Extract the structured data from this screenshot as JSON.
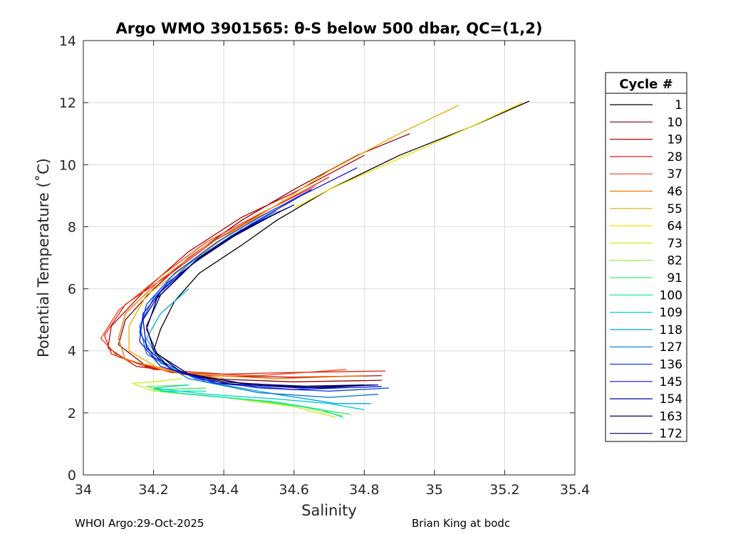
{
  "chart_data": {
    "type": "line",
    "title": "Argo WMO 3901565: θ-S below 500 dbar,  QC=(1,2)",
    "xlabel": "Salinity",
    "ylabel": "Potential Temperature (˚C)",
    "xlim": [
      34,
      35.4
    ],
    "ylim": [
      0,
      14
    ],
    "xticks": [
      "34",
      "34.2",
      "34.4",
      "34.6",
      "34.8",
      "35",
      "35.2",
      "35.4"
    ],
    "yticks": [
      "0",
      "2",
      "4",
      "6",
      "8",
      "10",
      "12",
      "14"
    ],
    "grid": true,
    "legend": {
      "title": "Cycle #",
      "placement": "right",
      "entries": [
        {
          "label": "1",
          "color": "#000000"
        },
        {
          "label": "10",
          "color": "#8b0000"
        },
        {
          "label": "19",
          "color": "#c00000"
        },
        {
          "label": "28",
          "color": "#e02010"
        },
        {
          "label": "37",
          "color": "#ee4010"
        },
        {
          "label": "46",
          "color": "#ee7700"
        },
        {
          "label": "55",
          "color": "#f0a800"
        },
        {
          "label": "64",
          "color": "#f0e000"
        },
        {
          "label": "73",
          "color": "#c8f020"
        },
        {
          "label": "82",
          "color": "#80f040"
        },
        {
          "label": "91",
          "color": "#30f060"
        },
        {
          "label": "100",
          "color": "#00e8a0"
        },
        {
          "label": "109",
          "color": "#00d0d0"
        },
        {
          "label": "118",
          "color": "#00a8e0"
        },
        {
          "label": "127",
          "color": "#0070d0"
        },
        {
          "label": "136",
          "color": "#0040e0"
        },
        {
          "label": "145",
          "color": "#1010f0"
        },
        {
          "label": "154",
          "color": "#0000b0"
        },
        {
          "label": "163",
          "color": "#000070"
        },
        {
          "label": "172",
          "color": "#000060"
        }
      ]
    },
    "series": [
      {
        "name": "1",
        "color": "#000000",
        "points": [
          [
            35.27,
            12.05
          ],
          [
            35.1,
            11.2
          ],
          [
            34.9,
            10.3
          ],
          [
            34.7,
            9.2
          ],
          [
            34.55,
            8.2
          ],
          [
            34.45,
            7.4
          ],
          [
            34.33,
            6.5
          ],
          [
            34.26,
            5.6
          ],
          [
            34.22,
            4.7
          ],
          [
            34.2,
            4.0
          ],
          [
            34.25,
            3.4
          ],
          [
            34.4,
            3.0
          ],
          [
            34.6,
            2.85
          ],
          [
            34.8,
            2.9
          ]
        ]
      },
      {
        "name": "10",
        "color": "#8b0000",
        "points": [
          [
            34.93,
            11.0
          ],
          [
            34.78,
            10.3
          ],
          [
            34.6,
            9.2
          ],
          [
            34.45,
            8.2
          ],
          [
            34.3,
            7.0
          ],
          [
            34.2,
            6.0
          ],
          [
            34.12,
            5.0
          ],
          [
            34.1,
            4.2
          ],
          [
            34.18,
            3.5
          ],
          [
            34.35,
            3.1
          ],
          [
            34.6,
            3.0
          ],
          [
            34.85,
            3.05
          ]
        ]
      },
      {
        "name": "19",
        "color": "#c00000",
        "points": [
          [
            34.8,
            10.3
          ],
          [
            34.6,
            9.1
          ],
          [
            34.45,
            8.3
          ],
          [
            34.3,
            7.2
          ],
          [
            34.18,
            6.0
          ],
          [
            34.08,
            4.8
          ],
          [
            34.07,
            4.1
          ],
          [
            34.15,
            3.5
          ],
          [
            34.35,
            3.2
          ],
          [
            34.6,
            3.15
          ],
          [
            34.85,
            3.2
          ]
        ]
      },
      {
        "name": "28",
        "color": "#e02010",
        "points": [
          [
            34.7,
            9.6
          ],
          [
            34.52,
            8.5
          ],
          [
            34.38,
            7.6
          ],
          [
            34.25,
            6.5
          ],
          [
            34.12,
            5.5
          ],
          [
            34.06,
            4.5
          ],
          [
            34.08,
            3.9
          ],
          [
            34.2,
            3.4
          ],
          [
            34.4,
            3.25
          ],
          [
            34.6,
            3.3
          ],
          [
            34.86,
            3.35
          ]
        ]
      },
      {
        "name": "37",
        "color": "#ee4010",
        "points": [
          [
            34.66,
            9.3
          ],
          [
            34.5,
            8.4
          ],
          [
            34.35,
            7.5
          ],
          [
            34.22,
            6.4
          ],
          [
            34.1,
            5.3
          ],
          [
            34.05,
            4.4
          ],
          [
            34.1,
            3.8
          ],
          [
            34.25,
            3.3
          ],
          [
            34.5,
            3.2
          ],
          [
            34.75,
            3.4
          ]
        ]
      },
      {
        "name": "46",
        "color": "#ee7700",
        "points": [
          [
            34.62,
            9.0
          ],
          [
            34.48,
            8.2
          ],
          [
            34.35,
            7.4
          ],
          [
            34.22,
            6.3
          ],
          [
            34.12,
            5.2
          ],
          [
            34.1,
            4.4
          ],
          [
            34.12,
            3.7
          ],
          [
            34.3,
            3.25
          ],
          [
            34.55,
            3.1
          ],
          [
            34.8,
            3.2
          ]
        ]
      },
      {
        "name": "55",
        "color": "#f0a800",
        "points": [
          [
            35.07,
            11.92
          ],
          [
            34.9,
            11.0
          ],
          [
            34.7,
            9.8
          ],
          [
            34.55,
            8.7
          ],
          [
            34.42,
            7.8
          ],
          [
            34.3,
            6.8
          ],
          [
            34.18,
            5.8
          ],
          [
            34.13,
            4.8
          ],
          [
            34.13,
            4.0
          ],
          [
            34.22,
            3.4
          ],
          [
            34.4,
            3.1
          ]
        ]
      },
      {
        "name": "64",
        "color": "#f0e000",
        "points": [
          [
            35.25,
            12.0
          ],
          [
            35.1,
            11.2
          ],
          [
            34.9,
            10.2
          ],
          [
            34.7,
            9.2
          ],
          [
            34.6,
            8.6
          ]
        ]
      },
      {
        "name": "73",
        "color": "#c8f020",
        "points": [
          [
            34.28,
            3.1
          ],
          [
            34.2,
            3.0
          ],
          [
            34.14,
            2.95
          ],
          [
            34.2,
            2.7
          ],
          [
            34.4,
            2.5
          ],
          [
            34.6,
            2.2
          ],
          [
            34.72,
            1.85
          ]
        ]
      },
      {
        "name": "82",
        "color": "#80f040",
        "points": [
          [
            34.3,
            2.9
          ],
          [
            34.18,
            2.85
          ],
          [
            34.25,
            2.65
          ],
          [
            34.45,
            2.45
          ],
          [
            34.62,
            2.2
          ],
          [
            34.74,
            1.9
          ]
        ]
      },
      {
        "name": "91",
        "color": "#30f060",
        "points": [
          [
            34.35,
            2.8
          ],
          [
            34.2,
            2.75
          ],
          [
            34.3,
            2.6
          ],
          [
            34.5,
            2.4
          ],
          [
            34.65,
            2.15
          ],
          [
            34.76,
            1.95
          ]
        ]
      },
      {
        "name": "100",
        "color": "#00e8a0",
        "points": [
          [
            34.35,
            2.7
          ],
          [
            34.22,
            2.7
          ],
          [
            34.35,
            2.55
          ],
          [
            34.55,
            2.35
          ],
          [
            34.68,
            2.1
          ],
          [
            34.74,
            1.85
          ]
        ]
      },
      {
        "name": "109",
        "color": "#00d0d0",
        "points": [
          [
            34.3,
            2.9
          ],
          [
            34.2,
            2.8
          ],
          [
            34.35,
            2.6
          ],
          [
            34.55,
            2.45
          ],
          [
            34.7,
            2.3
          ],
          [
            34.8,
            2.1
          ]
        ]
      },
      {
        "name": "118",
        "color": "#00a8e0",
        "points": [
          [
            34.3,
            6.0
          ],
          [
            34.22,
            5.2
          ],
          [
            34.18,
            4.4
          ],
          [
            34.22,
            3.6
          ],
          [
            34.35,
            3.0
          ],
          [
            34.55,
            2.6
          ],
          [
            34.72,
            2.3
          ],
          [
            34.82,
            2.3
          ]
        ]
      },
      {
        "name": "127",
        "color": "#0070d0",
        "points": [
          [
            34.55,
            8.5
          ],
          [
            34.42,
            7.7
          ],
          [
            34.3,
            6.8
          ],
          [
            34.2,
            5.7
          ],
          [
            34.16,
            4.8
          ],
          [
            34.18,
            3.9
          ],
          [
            34.3,
            3.1
          ],
          [
            34.5,
            2.65
          ],
          [
            34.7,
            2.5
          ],
          [
            34.84,
            2.6
          ]
        ]
      },
      {
        "name": "136",
        "color": "#0040e0",
        "points": [
          [
            34.65,
            9.2
          ],
          [
            34.5,
            8.3
          ],
          [
            34.38,
            7.5
          ],
          [
            34.26,
            6.5
          ],
          [
            34.18,
            5.5
          ],
          [
            34.16,
            4.6
          ],
          [
            34.2,
            3.8
          ],
          [
            34.32,
            3.1
          ],
          [
            34.5,
            2.8
          ],
          [
            34.7,
            2.7
          ],
          [
            34.87,
            2.8
          ]
        ]
      },
      {
        "name": "145",
        "color": "#1010f0",
        "points": [
          [
            34.78,
            9.9
          ],
          [
            34.62,
            9.0
          ],
          [
            34.48,
            8.1
          ],
          [
            34.36,
            7.2
          ],
          [
            34.24,
            6.2
          ],
          [
            34.17,
            5.2
          ],
          [
            34.16,
            4.3
          ],
          [
            34.22,
            3.5
          ],
          [
            34.38,
            2.95
          ],
          [
            34.6,
            2.75
          ],
          [
            34.85,
            2.85
          ]
        ]
      },
      {
        "name": "154",
        "color": "#0000b0",
        "points": [
          [
            34.6,
            8.7
          ],
          [
            34.45,
            7.9
          ],
          [
            34.33,
            7.0
          ],
          [
            34.22,
            5.9
          ],
          [
            34.17,
            5.0
          ],
          [
            34.18,
            4.1
          ],
          [
            34.25,
            3.4
          ],
          [
            34.4,
            2.95
          ],
          [
            34.62,
            2.8
          ],
          [
            34.84,
            2.9
          ]
        ]
      },
      {
        "name": "163",
        "color": "#000070",
        "points": [
          [
            34.58,
            8.6
          ],
          [
            34.44,
            7.8
          ],
          [
            34.32,
            6.9
          ],
          [
            34.22,
            5.8
          ],
          [
            34.18,
            4.8
          ],
          [
            34.2,
            4.0
          ],
          [
            34.28,
            3.3
          ],
          [
            34.45,
            2.95
          ],
          [
            34.65,
            2.85
          ],
          [
            34.83,
            2.9
          ]
        ]
      },
      {
        "name": "172",
        "color": "#000060",
        "points": [
          [
            34.56,
            8.5
          ],
          [
            34.43,
            7.7
          ],
          [
            34.31,
            6.8
          ],
          [
            34.21,
            5.7
          ],
          [
            34.18,
            4.7
          ],
          [
            34.21,
            3.9
          ],
          [
            34.3,
            3.25
          ],
          [
            34.48,
            2.9
          ],
          [
            34.68,
            2.8
          ],
          [
            34.82,
            2.9
          ]
        ]
      }
    ]
  },
  "footer": {
    "left": "WHOI Argo:29-Oct-2025",
    "right": "Brian King at bodc"
  }
}
